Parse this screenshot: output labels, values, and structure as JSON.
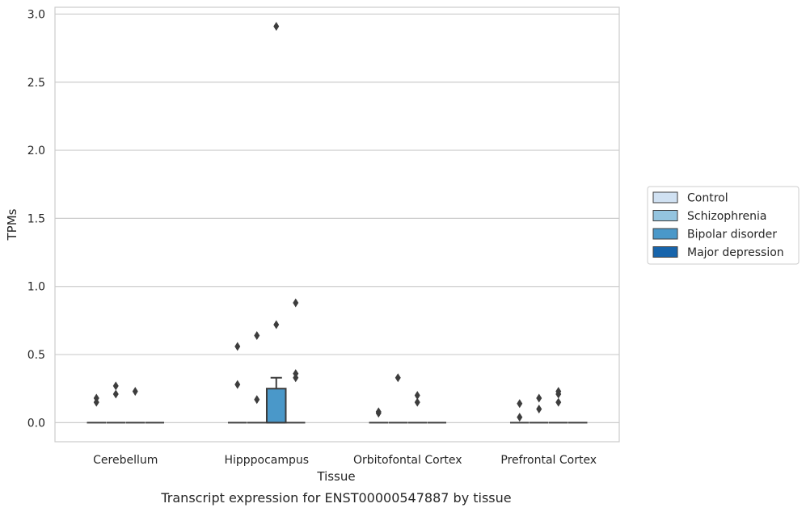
{
  "caption": "Transcript expression for ENST00000547887 by tissue",
  "chart_data": {
    "type": "box",
    "title": "",
    "xlabel": "Tissue",
    "ylabel": "TPMs",
    "ylim": [
      -0.14,
      3.05
    ],
    "yticks": [
      "0.0",
      "0.5",
      "1.0",
      "1.5",
      "2.0",
      "2.5",
      "3.0"
    ],
    "grid": "horizontal",
    "legend_position": "right",
    "categories": [
      "Cerebellum",
      "Hipppocampus",
      "Orbitofontal Cortex",
      "Prefrontal Cortex"
    ],
    "series": [
      {
        "name": "Control",
        "color": "#d0e1f2",
        "boxes": [
          {
            "q1": 0,
            "median": 0,
            "q3": 0,
            "whisker_low": 0,
            "whisker_high": 0,
            "outliers": [
              0.15,
              0.18
            ]
          },
          {
            "q1": 0,
            "median": 0,
            "q3": 0,
            "whisker_low": 0,
            "whisker_high": 0,
            "outliers": [
              0.28,
              0.56
            ]
          },
          {
            "q1": 0,
            "median": 0,
            "q3": 0,
            "whisker_low": 0,
            "whisker_high": 0,
            "outliers": [
              0.07,
              0.08
            ]
          },
          {
            "q1": 0,
            "median": 0,
            "q3": 0,
            "whisker_low": 0,
            "whisker_high": 0,
            "outliers": [
              0.04,
              0.14
            ]
          }
        ]
      },
      {
        "name": "Schizophrenia",
        "color": "#94c4df",
        "boxes": [
          {
            "q1": 0,
            "median": 0,
            "q3": 0,
            "whisker_low": 0,
            "whisker_high": 0,
            "outliers": [
              0.21,
              0.27
            ]
          },
          {
            "q1": 0,
            "median": 0,
            "q3": 0,
            "whisker_low": 0,
            "whisker_high": 0,
            "outliers": [
              0.17,
              0.64
            ]
          },
          {
            "q1": 0,
            "median": 0,
            "q3": 0,
            "whisker_low": 0,
            "whisker_high": 0,
            "outliers": [
              0.33
            ]
          },
          {
            "q1": 0,
            "median": 0,
            "q3": 0,
            "whisker_low": 0,
            "whisker_high": 0,
            "outliers": [
              0.1,
              0.18
            ]
          }
        ]
      },
      {
        "name": "Bipolar disorder",
        "color": "#4a98c9",
        "boxes": [
          {
            "q1": 0,
            "median": 0,
            "q3": 0,
            "whisker_low": 0,
            "whisker_high": 0,
            "outliers": [
              0.23
            ]
          },
          {
            "q1": 0,
            "median": 0,
            "q3": 0.25,
            "whisker_low": 0,
            "whisker_high": 0.33,
            "outliers": [
              0.72,
              2.91
            ]
          },
          {
            "q1": 0,
            "median": 0,
            "q3": 0,
            "whisker_low": 0,
            "whisker_high": 0,
            "outliers": [
              0.15,
              0.2
            ]
          },
          {
            "q1": 0,
            "median": 0,
            "q3": 0,
            "whisker_low": 0,
            "whisker_high": 0,
            "outliers": [
              0.15,
              0.21,
              0.23
            ]
          }
        ]
      },
      {
        "name": "Major depression",
        "color": "#1764ab",
        "boxes": [
          {
            "q1": 0,
            "median": 0,
            "q3": 0,
            "whisker_low": 0,
            "whisker_high": 0,
            "outliers": []
          },
          {
            "q1": 0,
            "median": 0,
            "q3": 0,
            "whisker_low": 0,
            "whisker_high": 0,
            "outliers": [
              0.33,
              0.36,
              0.88
            ]
          },
          {
            "q1": 0,
            "median": 0,
            "q3": 0,
            "whisker_low": 0,
            "whisker_high": 0,
            "outliers": []
          },
          {
            "q1": 0,
            "median": 0,
            "q3": 0,
            "whisker_low": 0,
            "whisker_high": 0,
            "outliers": []
          }
        ]
      }
    ]
  }
}
